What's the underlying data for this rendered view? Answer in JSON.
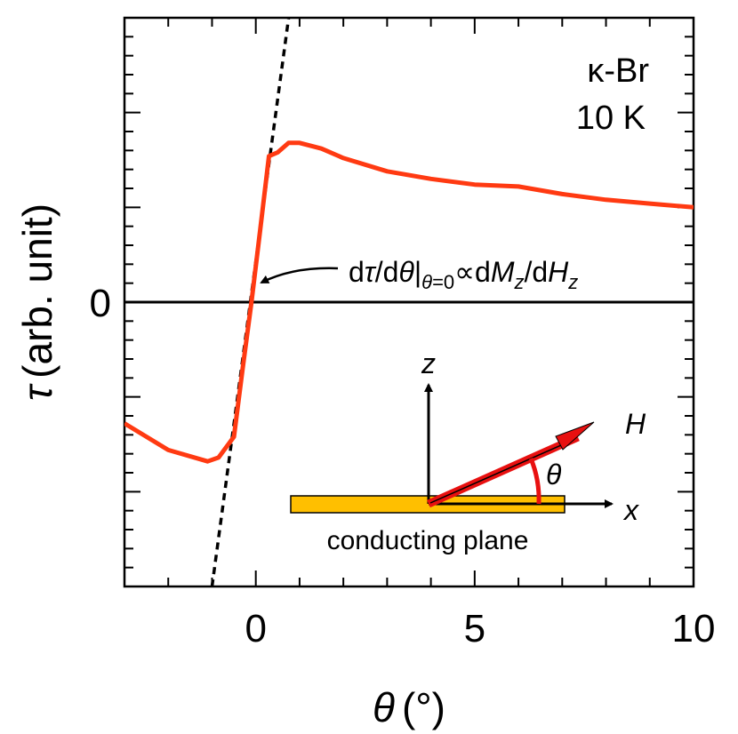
{
  "chart_data": {
    "type": "line",
    "xlabel_symbol": "θ",
    "xlabel_unit": "(°)",
    "ylabel_symbol": "τ",
    "ylabel_unit": "(arb. unit)",
    "xlim": [
      -3,
      10
    ],
    "ylim": [
      -1.5,
      1.5
    ],
    "x_ticks": [
      0,
      5,
      10
    ],
    "y_ticks": [
      0
    ],
    "x_tick_labels": [
      "0",
      "5",
      "10"
    ],
    "y_tick_labels": [
      "0"
    ],
    "sample_label": "κ-Br",
    "temperature_label": "10 K",
    "series": [
      {
        "name": "torque",
        "color": "#ff3a12",
        "x": [
          -3.0,
          -2.0,
          -1.1,
          -0.85,
          -0.5,
          -0.3,
          -0.1,
          0.1,
          0.3,
          0.5,
          0.75,
          1.0,
          1.5,
          2.0,
          3.0,
          4.0,
          5.0,
          6.0,
          7.0,
          8.0,
          9.0,
          10.0
        ],
        "y": [
          -0.64,
          -0.78,
          -0.84,
          -0.82,
          -0.71,
          -0.35,
          0.0,
          0.38,
          0.77,
          0.79,
          0.84,
          0.84,
          0.81,
          0.76,
          0.69,
          0.65,
          0.62,
          0.61,
          0.57,
          0.54,
          0.52,
          0.5
        ]
      },
      {
        "name": "tangent",
        "style": "dashed",
        "color": "#000000",
        "x": [
          -1.0,
          0.75
        ],
        "y": [
          -1.5,
          1.5
        ]
      },
      {
        "name": "zero",
        "color": "#000000",
        "x": [
          -3,
          10
        ],
        "y": [
          0,
          0
        ]
      }
    ],
    "annotation": {
      "prefix": "d",
      "tau": "τ",
      "slash1": "/d",
      "theta": "θ",
      "bar": "|",
      "sub_theta": "θ",
      "sub_eq": "=0",
      "prop": "∝d",
      "M": "M",
      "z1": "z",
      "slash2": "/d",
      "H": "H",
      "z2": "z"
    },
    "inset": {
      "plane_label": "conducting plane",
      "plane_color": "#ffbf00",
      "z_axis_label": "z",
      "x_axis_label": "x",
      "field_label": "H",
      "angle_label": "θ",
      "field_color": "#e81010"
    }
  }
}
